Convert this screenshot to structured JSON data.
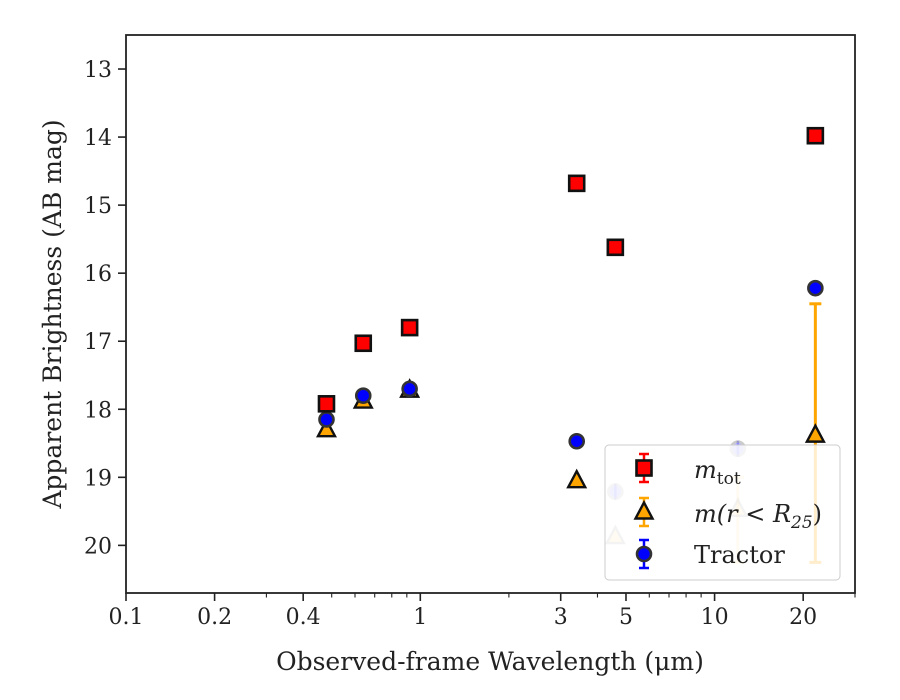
{
  "chart_data": {
    "type": "scatter",
    "title": "",
    "xlabel": "Observed-frame Wavelength (μm)",
    "ylabel": "Apparent Brightness (AB mag)",
    "xscale": "log",
    "xlim": [
      0.1,
      30
    ],
    "ylim": [
      20.7,
      12.5
    ],
    "y_inverted": true,
    "x_ticks": [
      0.1,
      0.2,
      0.4,
      1,
      3,
      5,
      10,
      20
    ],
    "x_tick_labels": [
      "0.1",
      "0.2",
      "0.4",
      "1",
      "3",
      "5",
      "10",
      "20"
    ],
    "y_ticks": [
      13,
      14,
      15,
      16,
      17,
      18,
      19,
      20
    ],
    "y_tick_labels": [
      "13",
      "14",
      "15",
      "16",
      "17",
      "18",
      "19",
      "20"
    ],
    "grid": false,
    "legend_position": "lower-right",
    "series": [
      {
        "name_prefix": "m",
        "name_subscript": "tot",
        "marker": "square",
        "color": "#ff0000",
        "edge_color": "#111111",
        "error_color": "#ff0000",
        "points": [
          {
            "x": 0.48,
            "y": 17.92,
            "alpha": 1
          },
          {
            "x": 0.64,
            "y": 17.03,
            "alpha": 1
          },
          {
            "x": 0.92,
            "y": 16.8,
            "alpha": 1
          },
          {
            "x": 3.4,
            "y": 14.68,
            "alpha": 1
          },
          {
            "x": 4.6,
            "y": 15.62,
            "alpha": 1
          },
          {
            "x": 22,
            "y": 13.98,
            "alpha": 1
          }
        ]
      },
      {
        "name_prefix": "m(r < R",
        "name_subscript": "25",
        "name_suffix": ")",
        "marker": "triangle",
        "color": "#ffa500",
        "edge_color": "#111111",
        "error_color": "#ffa500",
        "points": [
          {
            "x": 0.48,
            "y": 18.3,
            "alpha": 1
          },
          {
            "x": 0.64,
            "y": 17.88,
            "alpha": 1
          },
          {
            "x": 0.92,
            "y": 17.72,
            "alpha": 1
          },
          {
            "x": 3.4,
            "y": 19.05,
            "alpha": 1
          },
          {
            "x": 4.6,
            "y": 19.87,
            "alpha": 0.25
          },
          {
            "x": 12,
            "y": 19.47,
            "alpha": 0.25,
            "err_low": 19.0,
            "err_high": 20.25
          },
          {
            "x": 22,
            "y": 18.38,
            "alpha": 1,
            "err_low": 16.45,
            "err_high": 20.25
          }
        ]
      },
      {
        "name": "Tractor",
        "marker": "circle",
        "color": "#0000ff",
        "edge_color": "#333333",
        "error_color": "#0000ff",
        "points": [
          {
            "x": 0.48,
            "y": 18.15,
            "alpha": 1
          },
          {
            "x": 0.64,
            "y": 17.8,
            "alpha": 1
          },
          {
            "x": 0.92,
            "y": 17.7,
            "alpha": 1
          },
          {
            "x": 3.4,
            "y": 18.47,
            "alpha": 1
          },
          {
            "x": 4.6,
            "y": 19.21,
            "alpha": 0.25
          },
          {
            "x": 12,
            "y": 18.58,
            "alpha": 0.25
          },
          {
            "x": 22,
            "y": 16.22,
            "alpha": 1
          }
        ]
      }
    ]
  }
}
